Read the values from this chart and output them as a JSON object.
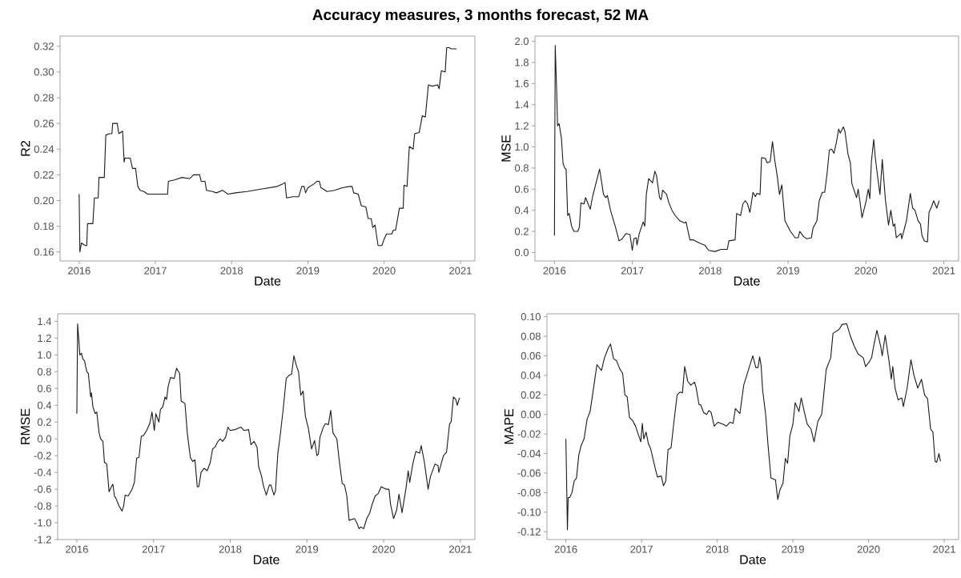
{
  "chart_data": [
    {
      "type": "line",
      "title": "Accuracy measures, 3 months forecast, 52 MA",
      "xlabel": "Date",
      "ylabel": "R2",
      "color": "#1a1a1a",
      "xlim": [
        2015.75,
        2021.19
      ],
      "xticks": [
        2016,
        2017,
        2018,
        2019,
        2020,
        2021
      ],
      "ylim": [
        0.153,
        0.328
      ],
      "yticks": [
        {
          "value": 0.16,
          "label": "0.16"
        },
        {
          "value": 0.18,
          "label": "0.18"
        },
        {
          "value": 0.2,
          "label": "0.20"
        },
        {
          "value": 0.22,
          "label": "0.22"
        },
        {
          "value": 0.24,
          "label": "0.24"
        },
        {
          "value": 0.26,
          "label": "0.26"
        },
        {
          "value": 0.28,
          "label": "0.28"
        },
        {
          "value": 0.3,
          "label": "0.30"
        },
        {
          "value": 0.32,
          "label": "0.32"
        }
      ],
      "x": [
        2016.0,
        2016.01,
        2016.03,
        2016.08,
        2016.1,
        2016.11,
        2016.18,
        2016.2,
        2016.25,
        2016.26,
        2016.33,
        2016.35,
        2016.4,
        2016.43,
        2016.44,
        2016.5,
        2016.52,
        2016.57,
        2016.59,
        2016.6,
        2016.67,
        2016.7,
        2016.74,
        2016.77,
        2016.8,
        2016.85,
        2016.9,
        2016.95,
        2017.0,
        2017.16,
        2017.17,
        2017.25,
        2017.35,
        2017.45,
        2017.5,
        2017.58,
        2017.6,
        2017.65,
        2017.67,
        2017.75,
        2017.8,
        2017.88,
        2017.95,
        2018.05,
        2018.2,
        2018.4,
        2018.6,
        2018.67,
        2018.7,
        2018.72,
        2018.8,
        2018.88,
        2018.92,
        2018.95,
        2018.97,
        2019.0,
        2019.08,
        2019.12,
        2019.15,
        2019.17,
        2019.2,
        2019.25,
        2019.35,
        2019.45,
        2019.55,
        2019.58,
        2019.6,
        2019.66,
        2019.7,
        2019.76,
        2019.79,
        2019.83,
        2019.85,
        2019.88,
        2019.92,
        2019.97,
        2020.0,
        2020.03,
        2020.1,
        2020.12,
        2020.15,
        2020.2,
        2020.25,
        2020.26,
        2020.3,
        2020.33,
        2020.38,
        2020.4,
        2020.46,
        2020.5,
        2020.54,
        2020.58,
        2020.63,
        2020.7,
        2020.72,
        2020.75,
        2020.8,
        2020.82,
        2020.85,
        2020.88,
        2020.95
      ],
      "values": [
        0.205,
        0.16,
        0.167,
        0.165,
        0.165,
        0.182,
        0.182,
        0.202,
        0.202,
        0.218,
        0.218,
        0.251,
        0.252,
        0.252,
        0.26,
        0.26,
        0.252,
        0.254,
        0.23,
        0.233,
        0.233,
        0.225,
        0.225,
        0.211,
        0.208,
        0.207,
        0.205,
        0.205,
        0.205,
        0.205,
        0.215,
        0.216,
        0.218,
        0.217,
        0.22,
        0.22,
        0.215,
        0.215,
        0.208,
        0.207,
        0.206,
        0.208,
        0.205,
        0.206,
        0.207,
        0.209,
        0.211,
        0.213,
        0.214,
        0.202,
        0.203,
        0.203,
        0.211,
        0.211,
        0.206,
        0.21,
        0.213,
        0.215,
        0.215,
        0.21,
        0.209,
        0.207,
        0.208,
        0.21,
        0.211,
        0.211,
        0.206,
        0.205,
        0.196,
        0.195,
        0.186,
        0.186,
        0.179,
        0.181,
        0.165,
        0.165,
        0.17,
        0.174,
        0.174,
        0.177,
        0.177,
        0.194,
        0.194,
        0.212,
        0.211,
        0.242,
        0.24,
        0.252,
        0.253,
        0.266,
        0.265,
        0.29,
        0.289,
        0.29,
        0.287,
        0.301,
        0.3,
        0.319,
        0.319,
        0.318,
        0.318
      ]
    },
    {
      "type": "line",
      "xlabel": "Date",
      "ylabel": "MSE",
      "color": "#1a1a1a",
      "xlim": [
        2015.75,
        2021.19
      ],
      "xticks": [
        2016,
        2017,
        2018,
        2019,
        2020,
        2021
      ],
      "ylim": [
        -0.08,
        2.05
      ],
      "yticks": [
        {
          "value": 0,
          "label": "0.0"
        },
        {
          "value": 0.2,
          "label": "0.2"
        },
        {
          "value": 0.4,
          "label": "0.4"
        },
        {
          "value": 0.6,
          "label": "0.6"
        },
        {
          "value": 0.8,
          "label": "0.8"
        },
        {
          "value": 1.0,
          "label": "1.0"
        },
        {
          "value": 1.2,
          "label": "1.2"
        },
        {
          "value": 1.4,
          "label": "1.4"
        },
        {
          "value": 1.6,
          "label": "1.6"
        },
        {
          "value": 1.8,
          "label": "1.8"
        },
        {
          "value": 2.0,
          "label": "2.0"
        }
      ],
      "x": [
        2016.0,
        2016.01,
        2016.03,
        2016.04,
        2016.06,
        2016.09,
        2016.11,
        2016.13,
        2016.15,
        2016.17,
        2016.19,
        2016.22,
        2016.25,
        2016.3,
        2016.32,
        2016.34,
        2016.38,
        2016.4,
        2016.46,
        2016.49,
        2016.58,
        2016.63,
        2016.66,
        2016.68,
        2016.72,
        2016.78,
        2016.83,
        2016.87,
        2016.92,
        2016.97,
        2017.0,
        2017.02,
        2017.05,
        2017.06,
        2017.09,
        2017.14,
        2017.16,
        2017.18,
        2017.21,
        2017.26,
        2017.29,
        2017.31,
        2017.35,
        2017.37,
        2017.39,
        2017.44,
        2017.47,
        2017.51,
        2017.55,
        2017.61,
        2017.67,
        2017.69,
        2017.74,
        2017.78,
        2017.86,
        2017.93,
        2017.98,
        2018.06,
        2018.14,
        2018.22,
        2018.24,
        2018.32,
        2018.34,
        2018.39,
        2018.42,
        2018.45,
        2018.48,
        2018.51,
        2018.55,
        2018.58,
        2018.6,
        2018.64,
        2018.66,
        2018.71,
        2018.73,
        2018.77,
        2018.8,
        2018.83,
        2018.86,
        2018.89,
        2018.92,
        2018.96,
        2019.03,
        2019.09,
        2019.13,
        2019.15,
        2019.2,
        2019.24,
        2019.3,
        2019.32,
        2019.37,
        2019.4,
        2019.44,
        2019.47,
        2019.5,
        2019.53,
        2019.56,
        2019.59,
        2019.62,
        2019.65,
        2019.67,
        2019.71,
        2019.73,
        2019.77,
        2019.8,
        2019.82,
        2019.88,
        2019.9,
        2019.92,
        2019.95,
        2020.0,
        2020.03,
        2020.05,
        2020.07,
        2020.1,
        2020.12,
        2020.15,
        2020.18,
        2020.21,
        2020.25,
        2020.29,
        2020.32,
        2020.35,
        2020.37,
        2020.39,
        2020.45,
        2020.46,
        2020.52,
        2020.57,
        2020.6,
        2020.63,
        2020.67,
        2020.7,
        2020.72,
        2020.75,
        2020.79,
        2020.81,
        2020.84,
        2020.87,
        2020.91,
        2020.94
      ],
      "values": [
        0.16,
        1.96,
        1.5,
        1.2,
        1.22,
        1.08,
        0.85,
        0.8,
        0.79,
        0.35,
        0.37,
        0.25,
        0.2,
        0.2,
        0.24,
        0.47,
        0.46,
        0.52,
        0.41,
        0.53,
        0.79,
        0.55,
        0.52,
        0.54,
        0.4,
        0.25,
        0.11,
        0.13,
        0.18,
        0.17,
        0.02,
        0.13,
        0.14,
        0.07,
        0.18,
        0.29,
        0.25,
        0.55,
        0.7,
        0.66,
        0.77,
        0.73,
        0.52,
        0.5,
        0.59,
        0.55,
        0.47,
        0.4,
        0.35,
        0.3,
        0.28,
        0.29,
        0.12,
        0.12,
        0.09,
        0.07,
        0.02,
        0.01,
        0.03,
        0.03,
        0.11,
        0.12,
        0.37,
        0.35,
        0.46,
        0.49,
        0.46,
        0.38,
        0.57,
        0.53,
        0.56,
        0.55,
        0.9,
        0.89,
        0.85,
        0.86,
        1.05,
        0.87,
        0.73,
        0.55,
        0.64,
        0.3,
        0.2,
        0.14,
        0.14,
        0.2,
        0.15,
        0.13,
        0.14,
        0.23,
        0.3,
        0.49,
        0.57,
        0.57,
        0.74,
        0.97,
        0.98,
        0.94,
        1.04,
        1.17,
        1.13,
        1.19,
        1.15,
        0.93,
        0.85,
        0.65,
        0.52,
        0.6,
        0.5,
        0.33,
        0.48,
        0.6,
        0.51,
        0.86,
        1.07,
        0.9,
        0.72,
        0.55,
        0.88,
        0.5,
        0.26,
        0.4,
        0.25,
        0.27,
        0.14,
        0.18,
        0.13,
        0.3,
        0.56,
        0.42,
        0.4,
        0.3,
        0.27,
        0.16,
        0.11,
        0.1,
        0.38,
        0.43,
        0.49,
        0.42,
        0.49
      ]
    },
    {
      "type": "line",
      "xlabel": "Date",
      "ylabel": "RMSE",
      "color": "#1a1a1a",
      "xlim": [
        2015.75,
        2021.19
      ],
      "xticks": [
        2016,
        2017,
        2018,
        2019,
        2020,
        2021
      ],
      "ylim": [
        -1.2,
        1.49
      ],
      "yticks": [
        {
          "value": -1.2,
          "label": "-1.2"
        },
        {
          "value": -1.0,
          "label": "-1.0"
        },
        {
          "value": -0.8,
          "label": "-0.8"
        },
        {
          "value": -0.6,
          "label": "-0.6"
        },
        {
          "value": -0.4,
          "label": "-0.4"
        },
        {
          "value": -0.2,
          "label": "-0.2"
        },
        {
          "value": 0,
          "label": "0.0"
        },
        {
          "value": 0.2,
          "label": "0.2"
        },
        {
          "value": 0.4,
          "label": "0.4"
        },
        {
          "value": 0.6,
          "label": "0.6"
        },
        {
          "value": 0.8,
          "label": "0.8"
        },
        {
          "value": 1.0,
          "label": "1.0"
        },
        {
          "value": 1.2,
          "label": "1.2"
        },
        {
          "value": 1.4,
          "label": "1.4"
        }
      ],
      "x": [
        2016.0,
        2016.01,
        2016.04,
        2016.06,
        2016.08,
        2016.1,
        2016.13,
        2016.15,
        2016.18,
        2016.19,
        2016.21,
        2016.24,
        2016.26,
        2016.29,
        2016.31,
        2016.34,
        2016.36,
        2016.39,
        2016.42,
        2016.45,
        2016.47,
        2016.49,
        2016.51,
        2016.55,
        2016.59,
        2016.61,
        2016.63,
        2016.67,
        2016.69,
        2016.72,
        2016.75,
        2016.78,
        2016.81,
        2016.84,
        2016.87,
        2016.91,
        2016.95,
        2016.98,
        2017.01,
        2017.03,
        2017.07,
        2017.09,
        2017.12,
        2017.15,
        2017.17,
        2017.19,
        2017.22,
        2017.27,
        2017.3,
        2017.34,
        2017.36,
        2017.41,
        2017.44,
        2017.48,
        2017.51,
        2017.54,
        2017.57,
        2017.59,
        2017.62,
        2017.66,
        2017.7,
        2017.74,
        2017.77,
        2017.8,
        2017.84,
        2017.87,
        2017.9,
        2017.94,
        2017.97,
        2018.0,
        2018.06,
        2018.14,
        2018.18,
        2018.24,
        2018.27,
        2018.31,
        2018.35,
        2018.37,
        2018.41,
        2018.43,
        2018.47,
        2018.51,
        2018.53,
        2018.57,
        2018.59,
        2018.62,
        2018.65,
        2018.69,
        2018.73,
        2018.77,
        2018.8,
        2018.83,
        2018.86,
        2018.89,
        2018.92,
        2018.95,
        2018.98,
        2019.02,
        2019.06,
        2019.1,
        2019.13,
        2019.15,
        2019.17,
        2019.21,
        2019.24,
        2019.28,
        2019.31,
        2019.34,
        2019.39,
        2019.42,
        2019.46,
        2019.49,
        2019.52,
        2019.55,
        2019.62,
        2019.65,
        2019.68,
        2019.7,
        2019.74,
        2019.78,
        2019.82,
        2019.85,
        2019.89,
        2019.93,
        2019.97,
        2020.03,
        2020.07,
        2020.09,
        2020.13,
        2020.17,
        2020.2,
        2020.24,
        2020.29,
        2020.32,
        2020.34,
        2020.38,
        2020.42,
        2020.47,
        2020.49,
        2020.53,
        2020.58,
        2020.61,
        2020.67,
        2020.71,
        2020.72,
        2020.78,
        2020.82,
        2020.86,
        2020.88,
        2020.91,
        2020.94,
        2020.96,
        2020.99
      ],
      "values": [
        0.3,
        1.37,
        1.0,
        1.02,
        0.95,
        0.93,
        0.8,
        0.78,
        0.5,
        0.55,
        0.38,
        0.3,
        0.32,
        0.07,
        0.0,
        -0.03,
        -0.28,
        -0.3,
        -0.63,
        -0.57,
        -0.54,
        -0.68,
        -0.71,
        -0.8,
        -0.86,
        -0.8,
        -0.67,
        -0.68,
        -0.65,
        -0.6,
        -0.52,
        -0.23,
        -0.22,
        0.03,
        0.04,
        0.1,
        0.18,
        0.32,
        0.1,
        0.3,
        0.2,
        0.35,
        0.38,
        0.5,
        0.47,
        0.62,
        0.73,
        0.72,
        0.84,
        0.78,
        0.45,
        0.42,
        0.07,
        -0.22,
        -0.27,
        -0.25,
        -0.57,
        -0.57,
        -0.4,
        -0.35,
        -0.38,
        -0.28,
        -0.12,
        -0.1,
        -0.03,
        0.0,
        -0.03,
        0.02,
        0.14,
        0.1,
        0.11,
        0.14,
        0.1,
        0.11,
        -0.07,
        -0.03,
        -0.1,
        -0.33,
        -0.45,
        -0.55,
        -0.67,
        -0.55,
        -0.55,
        -0.67,
        -0.62,
        -0.18,
        0.03,
        0.35,
        0.72,
        0.76,
        0.77,
        0.99,
        0.88,
        0.8,
        0.52,
        0.57,
        0.27,
        0.12,
        -0.12,
        -0.02,
        -0.2,
        -0.18,
        0.02,
        0.13,
        0.18,
        0.17,
        0.34,
        0.07,
        0.0,
        -0.25,
        -0.53,
        -0.55,
        -0.68,
        -0.97,
        -0.95,
        -1.0,
        -1.07,
        -1.05,
        -1.07,
        -0.95,
        -0.88,
        -0.78,
        -0.68,
        -0.65,
        -0.57,
        -0.6,
        -0.6,
        -0.78,
        -0.95,
        -0.85,
        -0.66,
        -0.88,
        -0.6,
        -0.38,
        -0.52,
        -0.3,
        -0.15,
        -0.17,
        -0.08,
        -0.27,
        -0.6,
        -0.45,
        -0.3,
        -0.32,
        -0.4,
        -0.2,
        -0.16,
        0.18,
        0.2,
        0.5,
        0.47,
        0.4,
        0.49
      ]
    },
    {
      "type": "line",
      "xlabel": "Date",
      "ylabel": "MAPE",
      "color": "#1a1a1a",
      "xlim": [
        2015.75,
        2021.19
      ],
      "xticks": [
        2016,
        2017,
        2018,
        2019,
        2020,
        2021
      ],
      "ylim": [
        -0.128,
        0.103
      ],
      "yticks": [
        {
          "value": -0.12,
          "label": "-0.12"
        },
        {
          "value": -0.1,
          "label": "-0.10"
        },
        {
          "value": -0.08,
          "label": "-0.08"
        },
        {
          "value": -0.06,
          "label": "-0.06"
        },
        {
          "value": -0.04,
          "label": "-0.04"
        },
        {
          "value": -0.02,
          "label": "-0.02"
        },
        {
          "value": 0,
          "label": "0.00"
        },
        {
          "value": 0.02,
          "label": "0.02"
        },
        {
          "value": 0.04,
          "label": "0.04"
        },
        {
          "value": 0.06,
          "label": "0.06"
        },
        {
          "value": 0.08,
          "label": "0.08"
        },
        {
          "value": 0.1,
          "label": "0.10"
        }
      ],
      "x": [
        2016.0,
        2016.02,
        2016.03,
        2016.05,
        2016.08,
        2016.11,
        2016.14,
        2016.17,
        2016.2,
        2016.24,
        2016.28,
        2016.32,
        2016.36,
        2016.41,
        2016.47,
        2016.51,
        2016.56,
        2016.59,
        2016.63,
        2016.67,
        2016.71,
        2016.75,
        2016.78,
        2016.81,
        2016.84,
        2016.88,
        2016.92,
        2016.99,
        2017.01,
        2017.03,
        2017.06,
        2017.09,
        2017.12,
        2017.15,
        2017.18,
        2017.21,
        2017.26,
        2017.29,
        2017.32,
        2017.35,
        2017.39,
        2017.43,
        2017.47,
        2017.51,
        2017.54,
        2017.57,
        2017.61,
        2017.65,
        2017.7,
        2017.72,
        2017.76,
        2017.78,
        2017.82,
        2017.86,
        2017.89,
        2017.92,
        2017.96,
        2018.01,
        2018.08,
        2018.12,
        2018.17,
        2018.21,
        2018.24,
        2018.3,
        2018.35,
        2018.39,
        2018.43,
        2018.47,
        2018.51,
        2018.54,
        2018.56,
        2018.58,
        2018.6,
        2018.64,
        2018.67,
        2018.71,
        2018.77,
        2018.8,
        2018.83,
        2018.87,
        2018.9,
        2018.93,
        2018.96,
        2019.0,
        2019.03,
        2019.08,
        2019.11,
        2019.15,
        2019.19,
        2019.24,
        2019.28,
        2019.33,
        2019.38,
        2019.41,
        2019.44,
        2019.5,
        2019.53,
        2019.61,
        2019.65,
        2019.71,
        2019.76,
        2019.81,
        2019.86,
        2019.93,
        2019.96,
        2020.01,
        2020.04,
        2020.07,
        2020.11,
        2020.16,
        2020.18,
        2020.22,
        2020.27,
        2020.3,
        2020.32,
        2020.35,
        2020.39,
        2020.44,
        2020.46,
        2020.51,
        2020.56,
        2020.6,
        2020.65,
        2020.7,
        2020.74,
        2020.78,
        2020.82,
        2020.85,
        2020.88,
        2020.9,
        2020.93,
        2020.95
      ],
      "values": [
        -0.025,
        -0.118,
        -0.085,
        -0.085,
        -0.08,
        -0.068,
        -0.065,
        -0.042,
        -0.032,
        -0.025,
        -0.005,
        0.003,
        0.024,
        0.051,
        0.045,
        0.058,
        0.068,
        0.072,
        0.057,
        0.055,
        0.047,
        0.042,
        0.02,
        0.018,
        -0.003,
        -0.006,
        -0.012,
        -0.028,
        -0.009,
        -0.025,
        -0.018,
        -0.03,
        -0.035,
        -0.045,
        -0.055,
        -0.064,
        -0.063,
        -0.073,
        -0.068,
        -0.036,
        -0.034,
        -0.006,
        0.02,
        0.023,
        0.022,
        0.049,
        0.034,
        0.03,
        0.033,
        0.028,
        0.01,
        0.01,
        0.002,
        0.0,
        0.004,
        0.002,
        -0.012,
        -0.008,
        -0.01,
        -0.012,
        -0.008,
        -0.009,
        0.006,
        0.001,
        0.03,
        0.04,
        0.05,
        0.06,
        0.048,
        0.048,
        0.059,
        0.05,
        0.025,
        0.0,
        -0.03,
        -0.065,
        -0.067,
        -0.087,
        -0.077,
        -0.07,
        -0.045,
        -0.05,
        -0.022,
        -0.01,
        0.012,
        0.003,
        0.017,
        0.003,
        -0.01,
        -0.015,
        -0.028,
        -0.007,
        0.0,
        0.022,
        0.046,
        0.058,
        0.083,
        0.087,
        0.092,
        0.093,
        0.08,
        0.07,
        0.062,
        0.058,
        0.049,
        0.054,
        0.058,
        0.071,
        0.086,
        0.07,
        0.06,
        0.081,
        0.055,
        0.036,
        0.049,
        0.027,
        0.015,
        0.017,
        0.008,
        0.027,
        0.056,
        0.04,
        0.027,
        0.036,
        0.02,
        0.016,
        -0.015,
        -0.018,
        -0.048,
        -0.049,
        -0.04,
        -0.048
      ]
    }
  ]
}
